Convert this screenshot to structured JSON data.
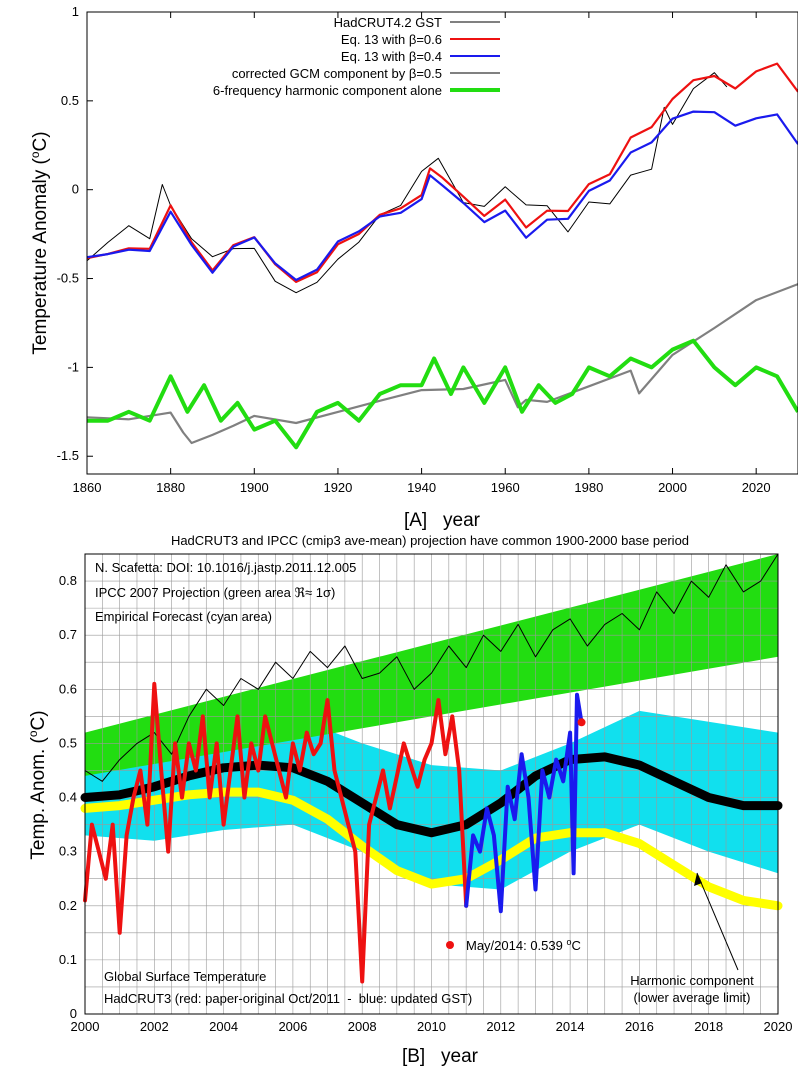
{
  "colors": {
    "hadcrut": "#000000",
    "red": "#ee1111",
    "blue": "#1a1aee",
    "gcm": "#808080",
    "green": "#22dd11",
    "cyan": "#11e0ee",
    "yellow": "#ffff00",
    "grid": "#9a9a9a"
  },
  "chart_data": [
    {
      "type": "line",
      "panel": "A",
      "xlabel": "[A]   year",
      "ylabel": "Temperature Anomaly (°C)",
      "ylabel_main": "Temperature Anomaly (",
      "ylabel_sup": "o",
      "ylabel_end": "C)",
      "xlim": [
        1860,
        2030
      ],
      "ylim": [
        -1.6,
        1.0
      ],
      "xticks": [
        "1860",
        "1880",
        "1900",
        "1920",
        "1940",
        "1960",
        "1980",
        "2000",
        "2020"
      ],
      "yticks": [
        "1",
        "0.5",
        "0",
        "-0.5",
        "-1",
        "-1.5"
      ],
      "legend_position": "top-left",
      "legend": [
        "HadCRUT4.2 GST",
        "Eq. 13 with β=0.6",
        "Eq. 13 with β=0.4",
        "corrected GCM component by β=0.5",
        "6-frequency harmonic component alone"
      ],
      "series": [
        {
          "name": "HadCRUT4.2 GST",
          "x": [
            1860,
            1865,
            1870,
            1875,
            1878,
            1880,
            1885,
            1890,
            1895,
            1900,
            1905,
            1910,
            1915,
            1920,
            1925,
            1930,
            1935,
            1940,
            1944,
            1950,
            1955,
            1960,
            1965,
            1970,
            1975,
            1980,
            1985,
            1990,
            1995,
            1998,
            2000,
            2005,
            2010,
            2013
          ],
          "y": [
            -0.4,
            -0.35,
            -0.3,
            -0.4,
            -0.1,
            -0.2,
            -0.35,
            -0.4,
            -0.3,
            -0.25,
            -0.4,
            -0.45,
            -0.4,
            -0.3,
            -0.25,
            -0.15,
            -0.15,
            0.0,
            0.05,
            -0.2,
            -0.2,
            -0.05,
            -0.1,
            -0.05,
            -0.15,
            0.05,
            0.05,
            0.2,
            0.2,
            0.5,
            0.35,
            0.5,
            0.55,
            0.45
          ]
        },
        {
          "name": "Eq. 13 with β=0.6",
          "x": [
            1860,
            1865,
            1870,
            1875,
            1880,
            1885,
            1890,
            1895,
            1900,
            1905,
            1910,
            1915,
            1920,
            1925,
            1930,
            1935,
            1940,
            1942,
            1945,
            1950,
            1955,
            1960,
            1965,
            1970,
            1975,
            1980,
            1985,
            1990,
            1995,
            2000,
            2005,
            2010,
            2015,
            2020,
            2025,
            2030
          ],
          "y": [
            -0.4,
            -0.38,
            -0.35,
            -0.35,
            -0.1,
            -0.3,
            -0.45,
            -0.3,
            -0.25,
            -0.4,
            -0.5,
            -0.45,
            -0.3,
            -0.25,
            -0.15,
            -0.12,
            -0.05,
            0.1,
            0.05,
            -0.05,
            -0.15,
            -0.05,
            -0.2,
            -0.1,
            -0.1,
            0.05,
            0.1,
            0.3,
            0.35,
            0.5,
            0.6,
            0.62,
            0.55,
            0.65,
            0.7,
            0.55
          ]
        },
        {
          "name": "Eq. 13 with β=0.4",
          "x": [
            1860,
            1865,
            1870,
            1875,
            1880,
            1885,
            1890,
            1895,
            1900,
            1905,
            1910,
            1915,
            1920,
            1925,
            1930,
            1935,
            1940,
            1942,
            1945,
            1950,
            1955,
            1960,
            1965,
            1970,
            1975,
            1980,
            1985,
            1990,
            1995,
            2000,
            2005,
            2010,
            2015,
            2020,
            2025,
            2030
          ],
          "y": [
            -0.4,
            -0.38,
            -0.35,
            -0.35,
            -0.12,
            -0.3,
            -0.45,
            -0.3,
            -0.25,
            -0.4,
            -0.5,
            -0.45,
            -0.3,
            -0.25,
            -0.17,
            -0.15,
            -0.07,
            0.07,
            0.02,
            -0.07,
            -0.17,
            -0.1,
            -0.25,
            -0.15,
            -0.15,
            0.0,
            0.05,
            0.2,
            0.25,
            0.38,
            0.42,
            0.42,
            0.35,
            0.4,
            0.43,
            0.27
          ]
        },
        {
          "name": "corrected GCM component by β=0.5",
          "x": [
            1860,
            1870,
            1880,
            1883,
            1885,
            1890,
            1895,
            1900,
            1910,
            1920,
            1930,
            1940,
            1950,
            1960,
            1963,
            1965,
            1970,
            1980,
            1990,
            1992,
            2000,
            2010,
            2020,
            2030
          ],
          "y": [
            -1.3,
            -1.3,
            -1.25,
            -1.35,
            -1.4,
            -1.35,
            -1.3,
            -1.25,
            -1.3,
            -1.25,
            -1.2,
            -1.15,
            -1.15,
            -1.1,
            -1.25,
            -1.2,
            -1.2,
            -1.1,
            -1.0,
            -1.12,
            -0.9,
            -0.75,
            -0.6,
            -0.52
          ]
        },
        {
          "name": "6-frequency harmonic component alone",
          "x": [
            1860,
            1865,
            1870,
            1875,
            1880,
            1884,
            1888,
            1892,
            1896,
            1900,
            1905,
            1910,
            1915,
            1920,
            1925,
            1930,
            1935,
            1940,
            1943,
            1947,
            1950,
            1955,
            1960,
            1964,
            1968,
            1972,
            1976,
            1980,
            1985,
            1990,
            1995,
            2000,
            2005,
            2010,
            2015,
            2020,
            2025,
            2030
          ],
          "y": [
            -1.3,
            -1.3,
            -1.25,
            -1.3,
            -1.05,
            -1.25,
            -1.1,
            -1.3,
            -1.2,
            -1.35,
            -1.3,
            -1.45,
            -1.25,
            -1.2,
            -1.3,
            -1.15,
            -1.1,
            -1.1,
            -0.95,
            -1.15,
            -1.0,
            -1.2,
            -1.0,
            -1.25,
            -1.1,
            -1.2,
            -1.15,
            -1.0,
            -1.05,
            -0.95,
            -1.0,
            -0.9,
            -0.85,
            -1.0,
            -1.1,
            -1.0,
            -1.05,
            -1.25
          ]
        }
      ]
    },
    {
      "type": "line",
      "panel": "B",
      "title": "HadCRUT3 and IPCC (cmip3 ave-mean) projection have common 1900-2000 base period",
      "xlabel": "[B]   year",
      "ylabel": "Temp. Anom. (°C)",
      "ylabel_main": "Temp. Anom. (",
      "ylabel_sup": "o",
      "ylabel_end": "C)",
      "xlim": [
        2000,
        2020
      ],
      "ylim": [
        0,
        0.85
      ],
      "xticks": [
        "2000",
        "2002",
        "2004",
        "2006",
        "2008",
        "2010",
        "2012",
        "2014",
        "2016",
        "2018",
        "2020"
      ],
      "yticks": [
        "0.8",
        "0.7",
        "0.6",
        "0.5",
        "0.4",
        "0.3",
        "0.2",
        "0.1",
        "0"
      ],
      "annotations": {
        "author": "N. Scafetta: DOI: 10.1016/j.jastp.2011.12.005",
        "ipcc_main": "IPCC 2007 Projection (green area ",
        "ipcc_sym": "ℜ≈ 1σ)",
        "forecast": "Empirical Forecast (cyan area)",
        "point_label": "May/2014: 0.539 ",
        "point_unit_sup": "o",
        "point_unit": "C",
        "bottom1": "Global Surface Temperature",
        "bottom2": "HadCRUT3 (red: paper-original Oct/2011  -  blue: updated GST)",
        "harmonic1": "Harmonic component",
        "harmonic2": "(lower average limit)"
      },
      "point": {
        "x": 2014.33,
        "y": 0.539
      },
      "bands": {
        "ipcc": {
          "x": [
            2000,
            2020
          ],
          "lower": [
            0.44,
            0.66
          ],
          "upper": [
            0.52,
            0.95
          ]
        },
        "cyan": {
          "x": [
            2000,
            2002,
            2004,
            2006,
            2008,
            2010,
            2012,
            2014,
            2016,
            2018,
            2020
          ],
          "lower": [
            0.33,
            0.32,
            0.34,
            0.35,
            0.3,
            0.24,
            0.23,
            0.3,
            0.35,
            0.3,
            0.26
          ],
          "upper": [
            0.48,
            0.47,
            0.52,
            0.55,
            0.5,
            0.46,
            0.45,
            0.5,
            0.56,
            0.54,
            0.52
          ]
        }
      },
      "series": [
        {
          "name": "IPCC mean",
          "x": [
            2000,
            2000.5,
            2001,
            2001.5,
            2002,
            2002.5,
            2003,
            2003.5,
            2004,
            2004.5,
            2005,
            2005.5,
            2006,
            2006.5,
            2007,
            2007.5,
            2008,
            2008.5,
            2009,
            2009.5,
            2010,
            2010.5,
            2011,
            2011.5,
            2012,
            2012.5,
            2013,
            2013.5,
            2014,
            2014.5,
            2015,
            2015.5,
            2016,
            2016.5,
            2017,
            2017.5,
            2018,
            2018.5,
            2019,
            2019.5,
            2020
          ],
          "y": [
            0.45,
            0.43,
            0.47,
            0.5,
            0.52,
            0.48,
            0.55,
            0.6,
            0.57,
            0.62,
            0.6,
            0.65,
            0.62,
            0.67,
            0.64,
            0.68,
            0.62,
            0.63,
            0.66,
            0.6,
            0.63,
            0.68,
            0.64,
            0.7,
            0.67,
            0.72,
            0.66,
            0.71,
            0.73,
            0.68,
            0.72,
            0.74,
            0.71,
            0.78,
            0.74,
            0.8,
            0.77,
            0.83,
            0.78,
            0.8,
            0.85
          ]
        },
        {
          "name": "HadCRUT3 red",
          "x": [
            2000,
            2000.2,
            2000.4,
            2000.6,
            2000.8,
            2001,
            2001.2,
            2001.4,
            2001.6,
            2001.8,
            2002,
            2002.2,
            2002.4,
            2002.6,
            2002.8,
            2003,
            2003.2,
            2003.4,
            2003.6,
            2003.8,
            2004,
            2004.2,
            2004.4,
            2004.6,
            2004.8,
            2005,
            2005.2,
            2005.4,
            2005.6,
            2005.8,
            2006,
            2006.2,
            2006.4,
            2006.6,
            2006.8,
            2007,
            2007.2,
            2007.4,
            2007.6,
            2007.8,
            2008,
            2008.2,
            2008.4,
            2008.6,
            2008.8,
            2009,
            2009.2,
            2009.4,
            2009.6,
            2009.8,
            2010,
            2010.2,
            2010.4,
            2010.6,
            2010.8,
            2011
          ],
          "y": [
            0.21,
            0.35,
            0.3,
            0.25,
            0.35,
            0.15,
            0.33,
            0.4,
            0.45,
            0.35,
            0.61,
            0.45,
            0.3,
            0.5,
            0.4,
            0.5,
            0.45,
            0.55,
            0.4,
            0.5,
            0.35,
            0.45,
            0.55,
            0.4,
            0.5,
            0.45,
            0.55,
            0.5,
            0.45,
            0.4,
            0.5,
            0.45,
            0.52,
            0.48,
            0.5,
            0.58,
            0.45,
            0.4,
            0.35,
            0.3,
            0.06,
            0.35,
            0.4,
            0.45,
            0.38,
            0.44,
            0.5,
            0.46,
            0.42,
            0.47,
            0.5,
            0.58,
            0.48,
            0.55,
            0.45,
            0.2
          ]
        },
        {
          "name": "updated GST blue",
          "x": [
            2011,
            2011.2,
            2011.4,
            2011.6,
            2011.8,
            2012,
            2012.2,
            2012.4,
            2012.6,
            2012.8,
            2013,
            2013.2,
            2013.4,
            2013.6,
            2013.8,
            2014,
            2014.1,
            2014.2,
            2014.33
          ],
          "y": [
            0.2,
            0.33,
            0.3,
            0.38,
            0.33,
            0.19,
            0.42,
            0.36,
            0.48,
            0.4,
            0.23,
            0.45,
            0.4,
            0.47,
            0.43,
            0.52,
            0.26,
            0.59,
            0.539
          ]
        },
        {
          "name": "Empirical forecast center",
          "x": [
            2000,
            2001,
            2002,
            2003,
            2004,
            2005,
            2006,
            2007,
            2008,
            2009,
            2010,
            2011,
            2012,
            2013,
            2014,
            2015,
            2016,
            2017,
            2018,
            2019,
            2020
          ],
          "y": [
            0.4,
            0.405,
            0.42,
            0.44,
            0.455,
            0.46,
            0.455,
            0.43,
            0.39,
            0.35,
            0.335,
            0.35,
            0.39,
            0.44,
            0.47,
            0.475,
            0.46,
            0.43,
            0.4,
            0.385,
            0.385
          ]
        },
        {
          "name": "Harmonic component",
          "x": [
            2000,
            2001,
            2002,
            2003,
            2004,
            2005,
            2006,
            2007,
            2008,
            2009,
            2010,
            2011,
            2012,
            2013,
            2014,
            2015,
            2016,
            2017,
            2018,
            2019,
            2020
          ],
          "y": [
            0.38,
            0.385,
            0.395,
            0.405,
            0.41,
            0.41,
            0.395,
            0.36,
            0.31,
            0.265,
            0.24,
            0.25,
            0.285,
            0.325,
            0.335,
            0.335,
            0.315,
            0.275,
            0.235,
            0.21,
            0.2
          ]
        }
      ]
    }
  ]
}
